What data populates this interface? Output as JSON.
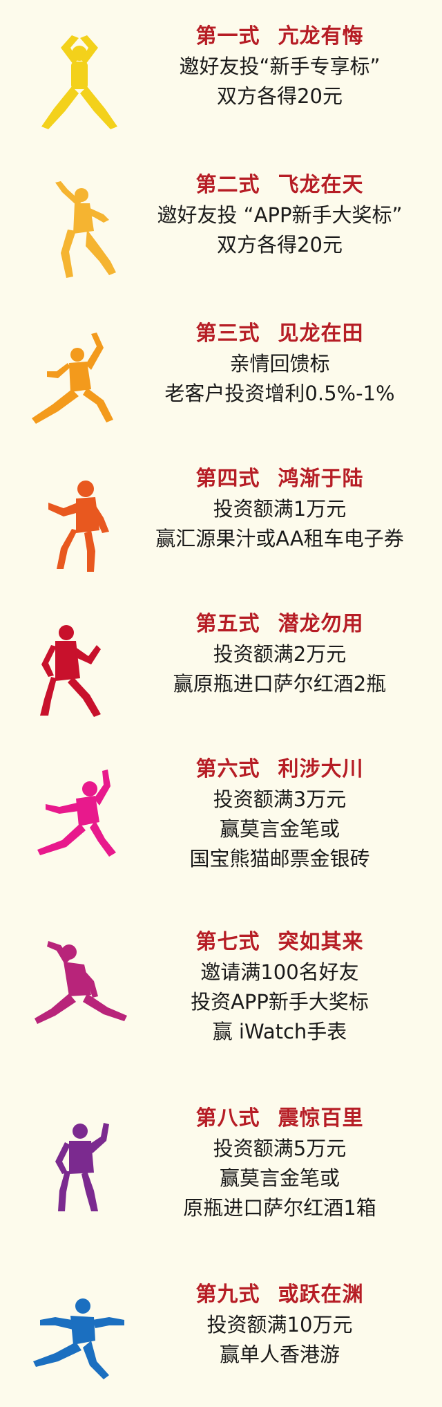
{
  "items": [
    {
      "color": "#f3d11b",
      "icon": "arms-overhead-figure-icon",
      "title_a": "第一式",
      "title_b": "亢龙有悔",
      "lines": [
        "邀好友投“新手专享标”",
        "双方各得20元"
      ]
    },
    {
      "color": "#f5b431",
      "icon": "crane-stance-figure-icon",
      "title_a": "第二式",
      "title_b": "飞龙在天",
      "lines": [
        "邀好友投 “APP新手大奖标”",
        "双方各得20元"
      ]
    },
    {
      "color": "#f39a1c",
      "icon": "low-stance-figure-icon",
      "title_a": "第三式",
      "title_b": "见龙在田",
      "lines": [
        "亲情回馈标",
        "老客户投资增利0.5%-1%"
      ]
    },
    {
      "color": "#e8581f",
      "icon": "push-stance-figure-icon",
      "title_a": "第四式",
      "title_b": "鸿渐于陆",
      "lines": [
        "投资额满1万元",
        "赢汇源果汁或AA租车电子券"
      ]
    },
    {
      "color": "#c8112c",
      "icon": "guard-stance-figure-icon",
      "title_a": "第五式",
      "title_b": "潜龙勿用",
      "lines": [
        "投资额满2万元",
        "赢原瓶进口萨尔红酒2瓶"
      ]
    },
    {
      "color": "#e8198c",
      "icon": "lunge-stance-figure-icon",
      "title_a": "第六式",
      "title_b": "利涉大川",
      "lines": [
        "投资额满3万元",
        "赢莫言金笔或",
        "国宝熊猫邮票金银砖"
      ]
    },
    {
      "color": "#b8247a",
      "icon": "bow-stance-figure-icon",
      "title_a": "第七式",
      "title_b": "突如其来",
      "lines": [
        "邀请满100名好友",
        "投资APP新手大奖标",
        "赢 iWatch手表"
      ]
    },
    {
      "color": "#7b2a8f",
      "icon": "ready-stance-figure-icon",
      "title_a": "第八式",
      "title_b": "震惊百里",
      "lines": [
        "投资额满5万元",
        "赢莫言金笔或",
        "原瓶进口萨尔红酒1箱"
      ]
    },
    {
      "color": "#1b6fc0",
      "icon": "kick-stance-figure-icon",
      "title_a": "第九式",
      "title_b": "或跃在渊",
      "lines": [
        "投资额满10万元",
        "赢单人香港游"
      ]
    }
  ]
}
